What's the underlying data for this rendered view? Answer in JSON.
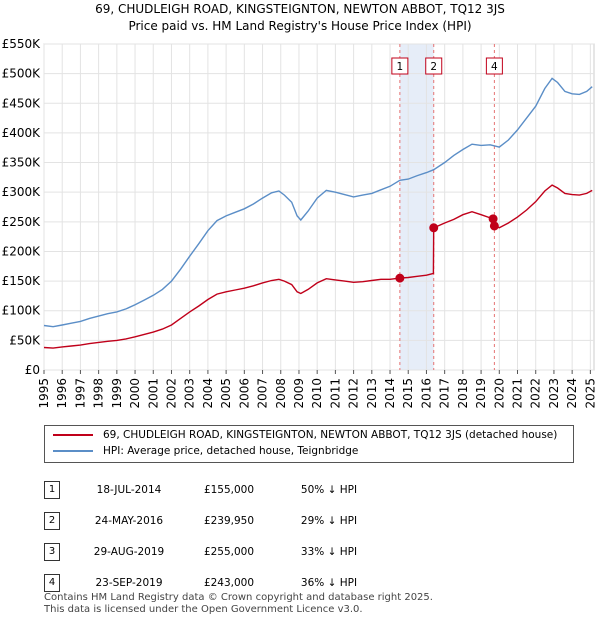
{
  "header": {
    "line1": "69, CHUDLEIGH ROAD, KINGSTEIGNTON, NEWTON ABBOT, TQ12 3JS",
    "line2": "Price paid vs. HM Land Registry's House Price Index (HPI)"
  },
  "chart_data": {
    "type": "line",
    "title": "69, CHUDLEIGH ROAD, KINGSTEIGNTON, NEWTON ABBOT, TQ12 3JS — Price paid vs. HM Land Registry's House Price Index (HPI)",
    "xlim": [
      1995,
      2025.2
    ],
    "ylim": [
      0,
      550000
    ],
    "y_ticks": [
      {
        "value": 0,
        "label": "£0"
      },
      {
        "value": 50000,
        "label": "£50K"
      },
      {
        "value": 100000,
        "label": "£100K"
      },
      {
        "value": 150000,
        "label": "£150K"
      },
      {
        "value": 200000,
        "label": "£200K"
      },
      {
        "value": 250000,
        "label": "£250K"
      },
      {
        "value": 300000,
        "label": "£300K"
      },
      {
        "value": 350000,
        "label": "£350K"
      },
      {
        "value": 400000,
        "label": "£400K"
      },
      {
        "value": 450000,
        "label": "£450K"
      },
      {
        "value": 500000,
        "label": "£500K"
      },
      {
        "value": 550000,
        "label": "£550K"
      }
    ],
    "x_ticks": [
      "1995",
      "1996",
      "1997",
      "1998",
      "1999",
      "2000",
      "2001",
      "2002",
      "2003",
      "2004",
      "2005",
      "2006",
      "2007",
      "2008",
      "2009",
      "2010",
      "2011",
      "2012",
      "2013",
      "2014",
      "2015",
      "2016",
      "2017",
      "2018",
      "2019",
      "2020",
      "2021",
      "2022",
      "2023",
      "2024",
      "2025"
    ],
    "grid": true,
    "shaded_period": [
      2014.54,
      2016.4
    ],
    "series": [
      {
        "name": "HPI: Average price, detached house, Teignbridge",
        "color": "#5b8ec7",
        "points": [
          [
            1995.0,
            75000
          ],
          [
            1995.5,
            73000
          ],
          [
            1996.0,
            76000
          ],
          [
            1996.5,
            79000
          ],
          [
            1997.0,
            82000
          ],
          [
            1997.5,
            87000
          ],
          [
            1998.0,
            91000
          ],
          [
            1998.5,
            95000
          ],
          [
            1999.0,
            98000
          ],
          [
            1999.5,
            103000
          ],
          [
            2000.0,
            110000
          ],
          [
            2000.5,
            118000
          ],
          [
            2001.0,
            126000
          ],
          [
            2001.5,
            136000
          ],
          [
            2002.0,
            150000
          ],
          [
            2002.5,
            170000
          ],
          [
            2003.0,
            192000
          ],
          [
            2003.5,
            213000
          ],
          [
            2004.0,
            235000
          ],
          [
            2004.5,
            252000
          ],
          [
            2005.0,
            260000
          ],
          [
            2005.5,
            266000
          ],
          [
            2006.0,
            272000
          ],
          [
            2006.5,
            280000
          ],
          [
            2007.0,
            290000
          ],
          [
            2007.5,
            299000
          ],
          [
            2007.9,
            302000
          ],
          [
            2008.2,
            295000
          ],
          [
            2008.6,
            283000
          ],
          [
            2008.9,
            260000
          ],
          [
            2009.1,
            253000
          ],
          [
            2009.5,
            268000
          ],
          [
            2010.0,
            290000
          ],
          [
            2010.5,
            303000
          ],
          [
            2011.0,
            300000
          ],
          [
            2011.5,
            296000
          ],
          [
            2012.0,
            292000
          ],
          [
            2012.5,
            295000
          ],
          [
            2013.0,
            298000
          ],
          [
            2013.5,
            304000
          ],
          [
            2014.0,
            310000
          ],
          [
            2014.54,
            320000
          ],
          [
            2015.0,
            322000
          ],
          [
            2015.5,
            328000
          ],
          [
            2016.0,
            333000
          ],
          [
            2016.4,
            338000
          ],
          [
            2017.0,
            350000
          ],
          [
            2017.5,
            362000
          ],
          [
            2018.0,
            372000
          ],
          [
            2018.5,
            381000
          ],
          [
            2019.0,
            379000
          ],
          [
            2019.5,
            380000
          ],
          [
            2020.0,
            376000
          ],
          [
            2020.5,
            388000
          ],
          [
            2021.0,
            405000
          ],
          [
            2021.5,
            425000
          ],
          [
            2022.0,
            445000
          ],
          [
            2022.5,
            475000
          ],
          [
            2022.9,
            492000
          ],
          [
            2023.2,
            485000
          ],
          [
            2023.6,
            470000
          ],
          [
            2024.0,
            466000
          ],
          [
            2024.4,
            465000
          ],
          [
            2024.8,
            470000
          ],
          [
            2025.1,
            478000
          ]
        ]
      },
      {
        "name": "69, CHUDLEIGH ROAD, KINGSTEIGNTON, NEWTON ABBOT, TQ12 3JS (detached house)",
        "color": "#c0001a",
        "points": [
          [
            1995.0,
            38000
          ],
          [
            1995.5,
            37000
          ],
          [
            1996.0,
            39000
          ],
          [
            1996.5,
            40500
          ],
          [
            1997.0,
            42000
          ],
          [
            1997.5,
            44500
          ],
          [
            1998.0,
            46500
          ],
          [
            1998.5,
            48500
          ],
          [
            1999.0,
            50000
          ],
          [
            1999.5,
            52500
          ],
          [
            2000.0,
            56000
          ],
          [
            2000.5,
            60000
          ],
          [
            2001.0,
            64000
          ],
          [
            2001.5,
            69000
          ],
          [
            2002.0,
            76000
          ],
          [
            2002.5,
            87000
          ],
          [
            2003.0,
            98000
          ],
          [
            2003.5,
            108000
          ],
          [
            2004.0,
            119000
          ],
          [
            2004.5,
            128000
          ],
          [
            2005.0,
            132000
          ],
          [
            2005.5,
            135000
          ],
          [
            2006.0,
            138000
          ],
          [
            2006.5,
            142000
          ],
          [
            2007.0,
            147000
          ],
          [
            2007.5,
            151000
          ],
          [
            2007.9,
            153000
          ],
          [
            2008.2,
            150000
          ],
          [
            2008.6,
            144000
          ],
          [
            2008.9,
            132000
          ],
          [
            2009.1,
            129000
          ],
          [
            2009.5,
            136000
          ],
          [
            2010.0,
            147000
          ],
          [
            2010.5,
            154000
          ],
          [
            2011.0,
            152000
          ],
          [
            2011.5,
            150000
          ],
          [
            2012.0,
            148000
          ],
          [
            2012.5,
            149000
          ],
          [
            2013.0,
            151000
          ],
          [
            2013.5,
            153000
          ],
          [
            2014.0,
            153000
          ],
          [
            2014.54,
            155000
          ],
          [
            2015.0,
            156000
          ],
          [
            2015.5,
            158000
          ],
          [
            2016.0,
            160000
          ],
          [
            2016.38,
            163000
          ],
          [
            2016.4,
            239950
          ],
          [
            2017.0,
            248000
          ],
          [
            2017.5,
            254000
          ],
          [
            2018.0,
            262000
          ],
          [
            2018.5,
            267000
          ],
          [
            2019.0,
            262000
          ],
          [
            2019.66,
            255000
          ],
          [
            2019.73,
            243000
          ],
          [
            2020.0,
            240000
          ],
          [
            2020.5,
            248000
          ],
          [
            2021.0,
            258000
          ],
          [
            2021.5,
            270000
          ],
          [
            2022.0,
            284000
          ],
          [
            2022.5,
            302000
          ],
          [
            2022.9,
            312000
          ],
          [
            2023.2,
            307000
          ],
          [
            2023.6,
            298000
          ],
          [
            2024.0,
            296000
          ],
          [
            2024.4,
            295000
          ],
          [
            2024.8,
            298000
          ],
          [
            2025.1,
            303000
          ]
        ]
      }
    ],
    "markers": [
      {
        "label": "1",
        "x": 2014.54,
        "y": 155000
      },
      {
        "label": "2",
        "x": 2016.4,
        "y": 239950
      },
      {
        "label": "3",
        "x": 2019.66,
        "y": 255000
      },
      {
        "label": "4",
        "x": 2019.73,
        "y": 243000
      }
    ],
    "marker_boxes": [
      {
        "label": "1",
        "x": 2014.54
      },
      {
        "label": "2",
        "x": 2016.4
      },
      {
        "label": "4",
        "x": 2019.73
      }
    ]
  },
  "legend": {
    "property": "69, CHUDLEIGH ROAD, KINGSTEIGNTON, NEWTON ABBOT, TQ12 3JS (detached house)",
    "hpi": "HPI: Average price, detached house, Teignbridge",
    "property_color": "#c0001a",
    "hpi_color": "#5b8ec7"
  },
  "sales": [
    {
      "num": "1",
      "date": "18-JUL-2014",
      "price": "£155,000",
      "hpi": "50% ↓ HPI"
    },
    {
      "num": "2",
      "date": "24-MAY-2016",
      "price": "£239,950",
      "hpi": "29% ↓ HPI"
    },
    {
      "num": "3",
      "date": "29-AUG-2019",
      "price": "£255,000",
      "hpi": "33% ↓ HPI"
    },
    {
      "num": "4",
      "date": "23-SEP-2019",
      "price": "£243,000",
      "hpi": "36% ↓ HPI"
    }
  ],
  "footer": {
    "line1": "Contains HM Land Registry data © Crown copyright and database right 2025.",
    "line2": "This data is licensed under the Open Government Licence v3.0."
  }
}
